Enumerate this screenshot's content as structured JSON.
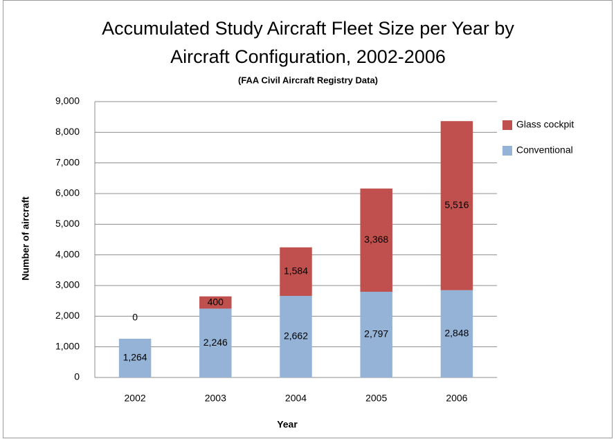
{
  "chart_data": {
    "type": "stacked_bar",
    "title": [
      "Accumulated Study Aircraft Fleet Size per Year by",
      "Aircraft Configuration, 2002-2006"
    ],
    "subtitle": "(FAA Civil Aircraft Registry Data)",
    "x_label": "Year",
    "y_label": "Number of aircraft",
    "categories": [
      "2002",
      "2003",
      "2004",
      "2005",
      "2006"
    ],
    "series": [
      {
        "name": "Conventional",
        "color": "#95b3d7",
        "values": [
          1264,
          2246,
          2662,
          2797,
          2848
        ],
        "value_labels": [
          "1,264",
          "2,246",
          "2,662",
          "2,797",
          "2,848"
        ]
      },
      {
        "name": "Glass cockpit",
        "color": "#c0504d",
        "values": [
          0,
          400,
          1584,
          3368,
          5516
        ],
        "value_labels": [
          "0",
          "400",
          "1,584",
          "3,368",
          "5,516"
        ]
      }
    ],
    "ylim": [
      0,
      9000
    ],
    "yticks": [
      0,
      {
        "value": 1000,
        "label": "1,000"
      },
      {
        "value": 2000,
        "label": "2,000"
      },
      {
        "value": 3000,
        "label": "3,000"
      },
      {
        "value": 4000,
        "label": "4,000"
      },
      {
        "value": 5000,
        "label": "5,000"
      },
      {
        "value": 6000,
        "label": "6,000"
      },
      {
        "value": 7000,
        "label": "7,000"
      },
      {
        "value": 8000,
        "label": "8,000"
      },
      {
        "value": 9000,
        "label": "9,000"
      }
    ],
    "grid": true,
    "legend": "right"
  }
}
